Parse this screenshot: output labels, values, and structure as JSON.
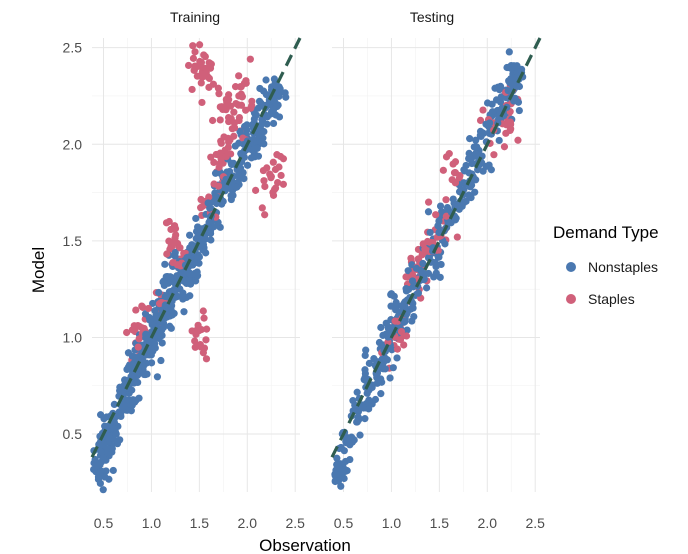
{
  "chart_data": {
    "type": "scatter",
    "xlabel": "Observation",
    "ylabel": "Model",
    "xlim": [
      0.38,
      2.55
    ],
    "ylim": [
      0.2,
      2.55
    ],
    "x_ticks": [
      "0.5",
      "1.0",
      "1.5",
      "2.0",
      "2.5"
    ],
    "y_ticks": [
      "0.5",
      "1.0",
      "1.5",
      "2.0",
      "2.5"
    ],
    "reference_line": {
      "style": "dashed",
      "color": "#2f5d50",
      "slope": 1,
      "intercept": 0
    },
    "grid": true,
    "legend": {
      "title": "Demand Type",
      "position": "right",
      "entries": [
        {
          "label": "Nonstaples",
          "color": "#4a78b0"
        },
        {
          "label": "Staples",
          "color": "#d0607a"
        }
      ]
    },
    "panels": [
      {
        "title": "Training",
        "series": [
          {
            "name": "Nonstaples",
            "points": [
              [
                0.45,
                0.3
              ],
              [
                0.5,
                0.42
              ],
              [
                0.55,
                0.5
              ],
              [
                0.6,
                0.55
              ],
              [
                0.7,
                0.65
              ],
              [
                0.75,
                0.7
              ],
              [
                0.8,
                0.78
              ],
              [
                0.85,
                0.85
              ],
              [
                0.9,
                0.9
              ],
              [
                0.95,
                0.95
              ],
              [
                1.0,
                1.0
              ],
              [
                1.05,
                1.05
              ],
              [
                1.1,
                1.1
              ],
              [
                1.15,
                1.15
              ],
              [
                1.2,
                1.2
              ],
              [
                1.25,
                1.25
              ],
              [
                1.3,
                1.3
              ],
              [
                1.35,
                1.35
              ],
              [
                1.4,
                1.4
              ],
              [
                1.5,
                1.5
              ],
              [
                1.6,
                1.6
              ],
              [
                1.7,
                1.7
              ],
              [
                1.8,
                1.8
              ],
              [
                1.9,
                1.9
              ],
              [
                2.0,
                2.0
              ],
              [
                2.1,
                2.05
              ],
              [
                2.2,
                2.2
              ],
              [
                2.3,
                2.25
              ]
            ]
          },
          {
            "name": "Staples",
            "points": [
              [
                0.85,
                1.0
              ],
              [
                0.9,
                1.1
              ],
              [
                1.1,
                1.2
              ],
              [
                1.2,
                1.5
              ],
              [
                1.3,
                1.4
              ],
              [
                1.5,
                1.0
              ],
              [
                1.6,
                1.7
              ],
              [
                1.7,
                1.9
              ],
              [
                1.8,
                2.0
              ],
              [
                1.9,
                2.1
              ],
              [
                1.95,
                2.25
              ],
              [
                2.0,
                2.3
              ],
              [
                2.2,
                1.8
              ],
              [
                2.3,
                1.85
              ],
              [
                1.5,
                2.4
              ],
              [
                1.55,
                2.35
              ],
              [
                1.75,
                2.2
              ]
            ]
          }
        ]
      },
      {
        "title": "Testing",
        "series": [
          {
            "name": "Nonstaples",
            "points": [
              [
                0.45,
                0.3
              ],
              [
                0.55,
                0.45
              ],
              [
                0.65,
                0.6
              ],
              [
                0.75,
                0.75
              ],
              [
                0.85,
                0.85
              ],
              [
                0.95,
                0.95
              ],
              [
                1.05,
                1.05
              ],
              [
                1.15,
                1.15
              ],
              [
                1.25,
                1.25
              ],
              [
                1.35,
                1.35
              ],
              [
                1.45,
                1.45
              ],
              [
                1.55,
                1.55
              ],
              [
                1.65,
                1.65
              ],
              [
                1.75,
                1.75
              ],
              [
                1.85,
                1.9
              ],
              [
                1.95,
                2.0
              ],
              [
                2.05,
                2.1
              ],
              [
                2.15,
                2.2
              ],
              [
                2.25,
                2.3
              ],
              [
                2.3,
                2.35
              ]
            ]
          },
          {
            "name": "Staples",
            "points": [
              [
                1.0,
                1.0
              ],
              [
                1.1,
                1.05
              ],
              [
                1.25,
                1.3
              ],
              [
                1.35,
                1.45
              ],
              [
                1.45,
                1.55
              ],
              [
                1.55,
                1.6
              ],
              [
                1.65,
                1.85
              ],
              [
                2.0,
                2.05
              ],
              [
                2.2,
                2.1
              ],
              [
                2.25,
                2.25
              ]
            ]
          }
        ]
      }
    ]
  }
}
